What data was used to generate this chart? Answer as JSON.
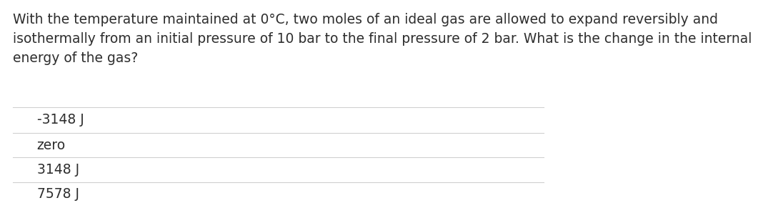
{
  "question": "With the temperature maintained at 0°C, two moles of an ideal gas are allowed to expand reversibly and\nisothermally from an initial pressure of 10 bar to the final pressure of 2 bar. What is the change in the internal\nenergy of the gas?",
  "options": [
    "-3148 J",
    "zero",
    "3148 J",
    "7578 J"
  ],
  "selected_index": 1,
  "background_color": "#ffffff",
  "text_color": "#2e2e2e",
  "question_font_size": 13.5,
  "option_font_size": 13.5,
  "radio_unselected_color": "#aaaaaa",
  "radio_selected_outer_color": "#1a73e8",
  "radio_selected_inner_color": "#1a73e8",
  "divider_color": "#d0d0d0",
  "divider_linewidth": 0.8
}
